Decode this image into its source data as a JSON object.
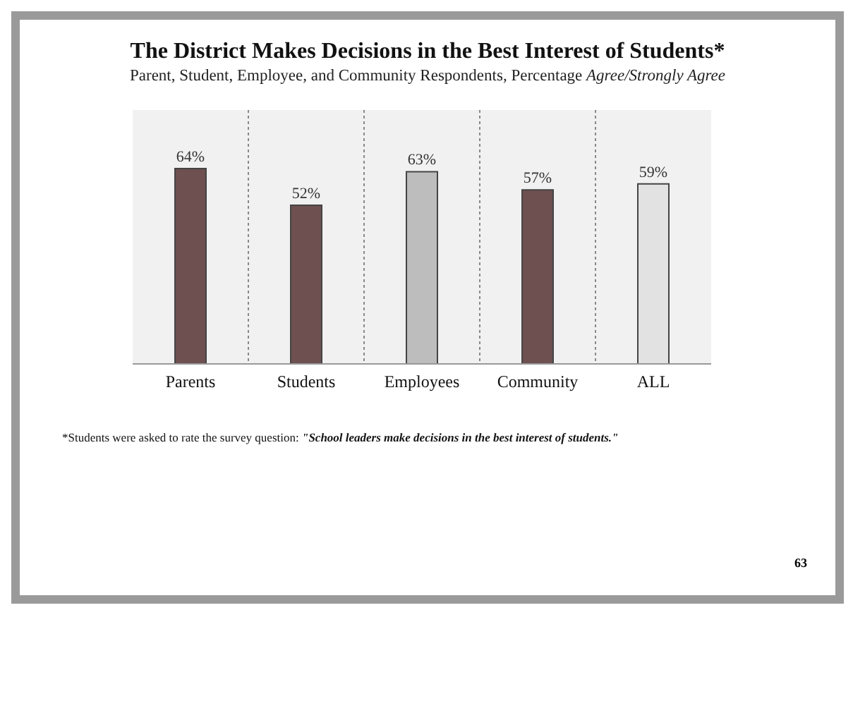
{
  "chart_data": {
    "type": "bar",
    "title": "The District Makes Decisions in the Best Interest of Students*",
    "subtitle": "Parent, Student, Employee, and Community Respondents, Percentage Agree/Strongly Agree",
    "categories": [
      "Parents",
      "Students",
      "Employees",
      "Community",
      "ALL"
    ],
    "values": [
      64,
      52,
      63,
      57,
      59
    ],
    "colors": [
      "#6e5050",
      "#6e5050",
      "#bdbdbd",
      "#6e5050",
      "#e2e2e2"
    ],
    "value_labels": [
      "64%",
      "52%",
      "63%",
      "57%",
      "59%"
    ],
    "tick_labels": "x",
    "grid": "x",
    "annotations": [
      "*Students were asked to rate the survey question: \"School leaders make decisions in the best interest of students.\"",
      "63"
    ]
  }
}
